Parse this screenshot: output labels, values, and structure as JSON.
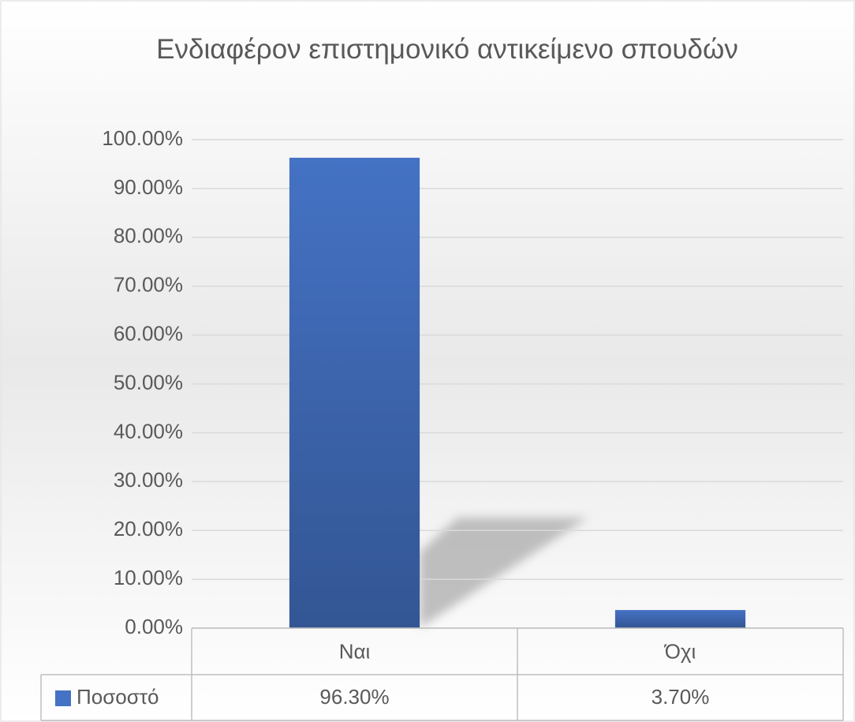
{
  "chart_data": {
    "type": "bar",
    "title": "Ενδιαφέρον επιστημονικό αντικείμενο σπουδών",
    "categories": [
      "Ναι",
      "Όχι"
    ],
    "series": [
      {
        "name": "Ποσοστό",
        "color": "#4472c4",
        "values": [
          96.3,
          3.7
        ],
        "value_labels": [
          "96.30%",
          "3.70%"
        ]
      }
    ],
    "ylim": [
      0,
      100
    ],
    "yticks": [
      {
        "value": 0,
        "label": "0.00%"
      },
      {
        "value": 10,
        "label": "10.00%"
      },
      {
        "value": 20,
        "label": "20.00%"
      },
      {
        "value": 30,
        "label": "30.00%"
      },
      {
        "value": 40,
        "label": "40.00%"
      },
      {
        "value": 50,
        "label": "50.00%"
      },
      {
        "value": 60,
        "label": "60.00%"
      },
      {
        "value": 70,
        "label": "70.00%"
      },
      {
        "value": 80,
        "label": "80.00%"
      },
      {
        "value": 90,
        "label": "90.00%"
      },
      {
        "value": 100,
        "label": "100.00%"
      }
    ],
    "grid": true,
    "data_table": true
  }
}
